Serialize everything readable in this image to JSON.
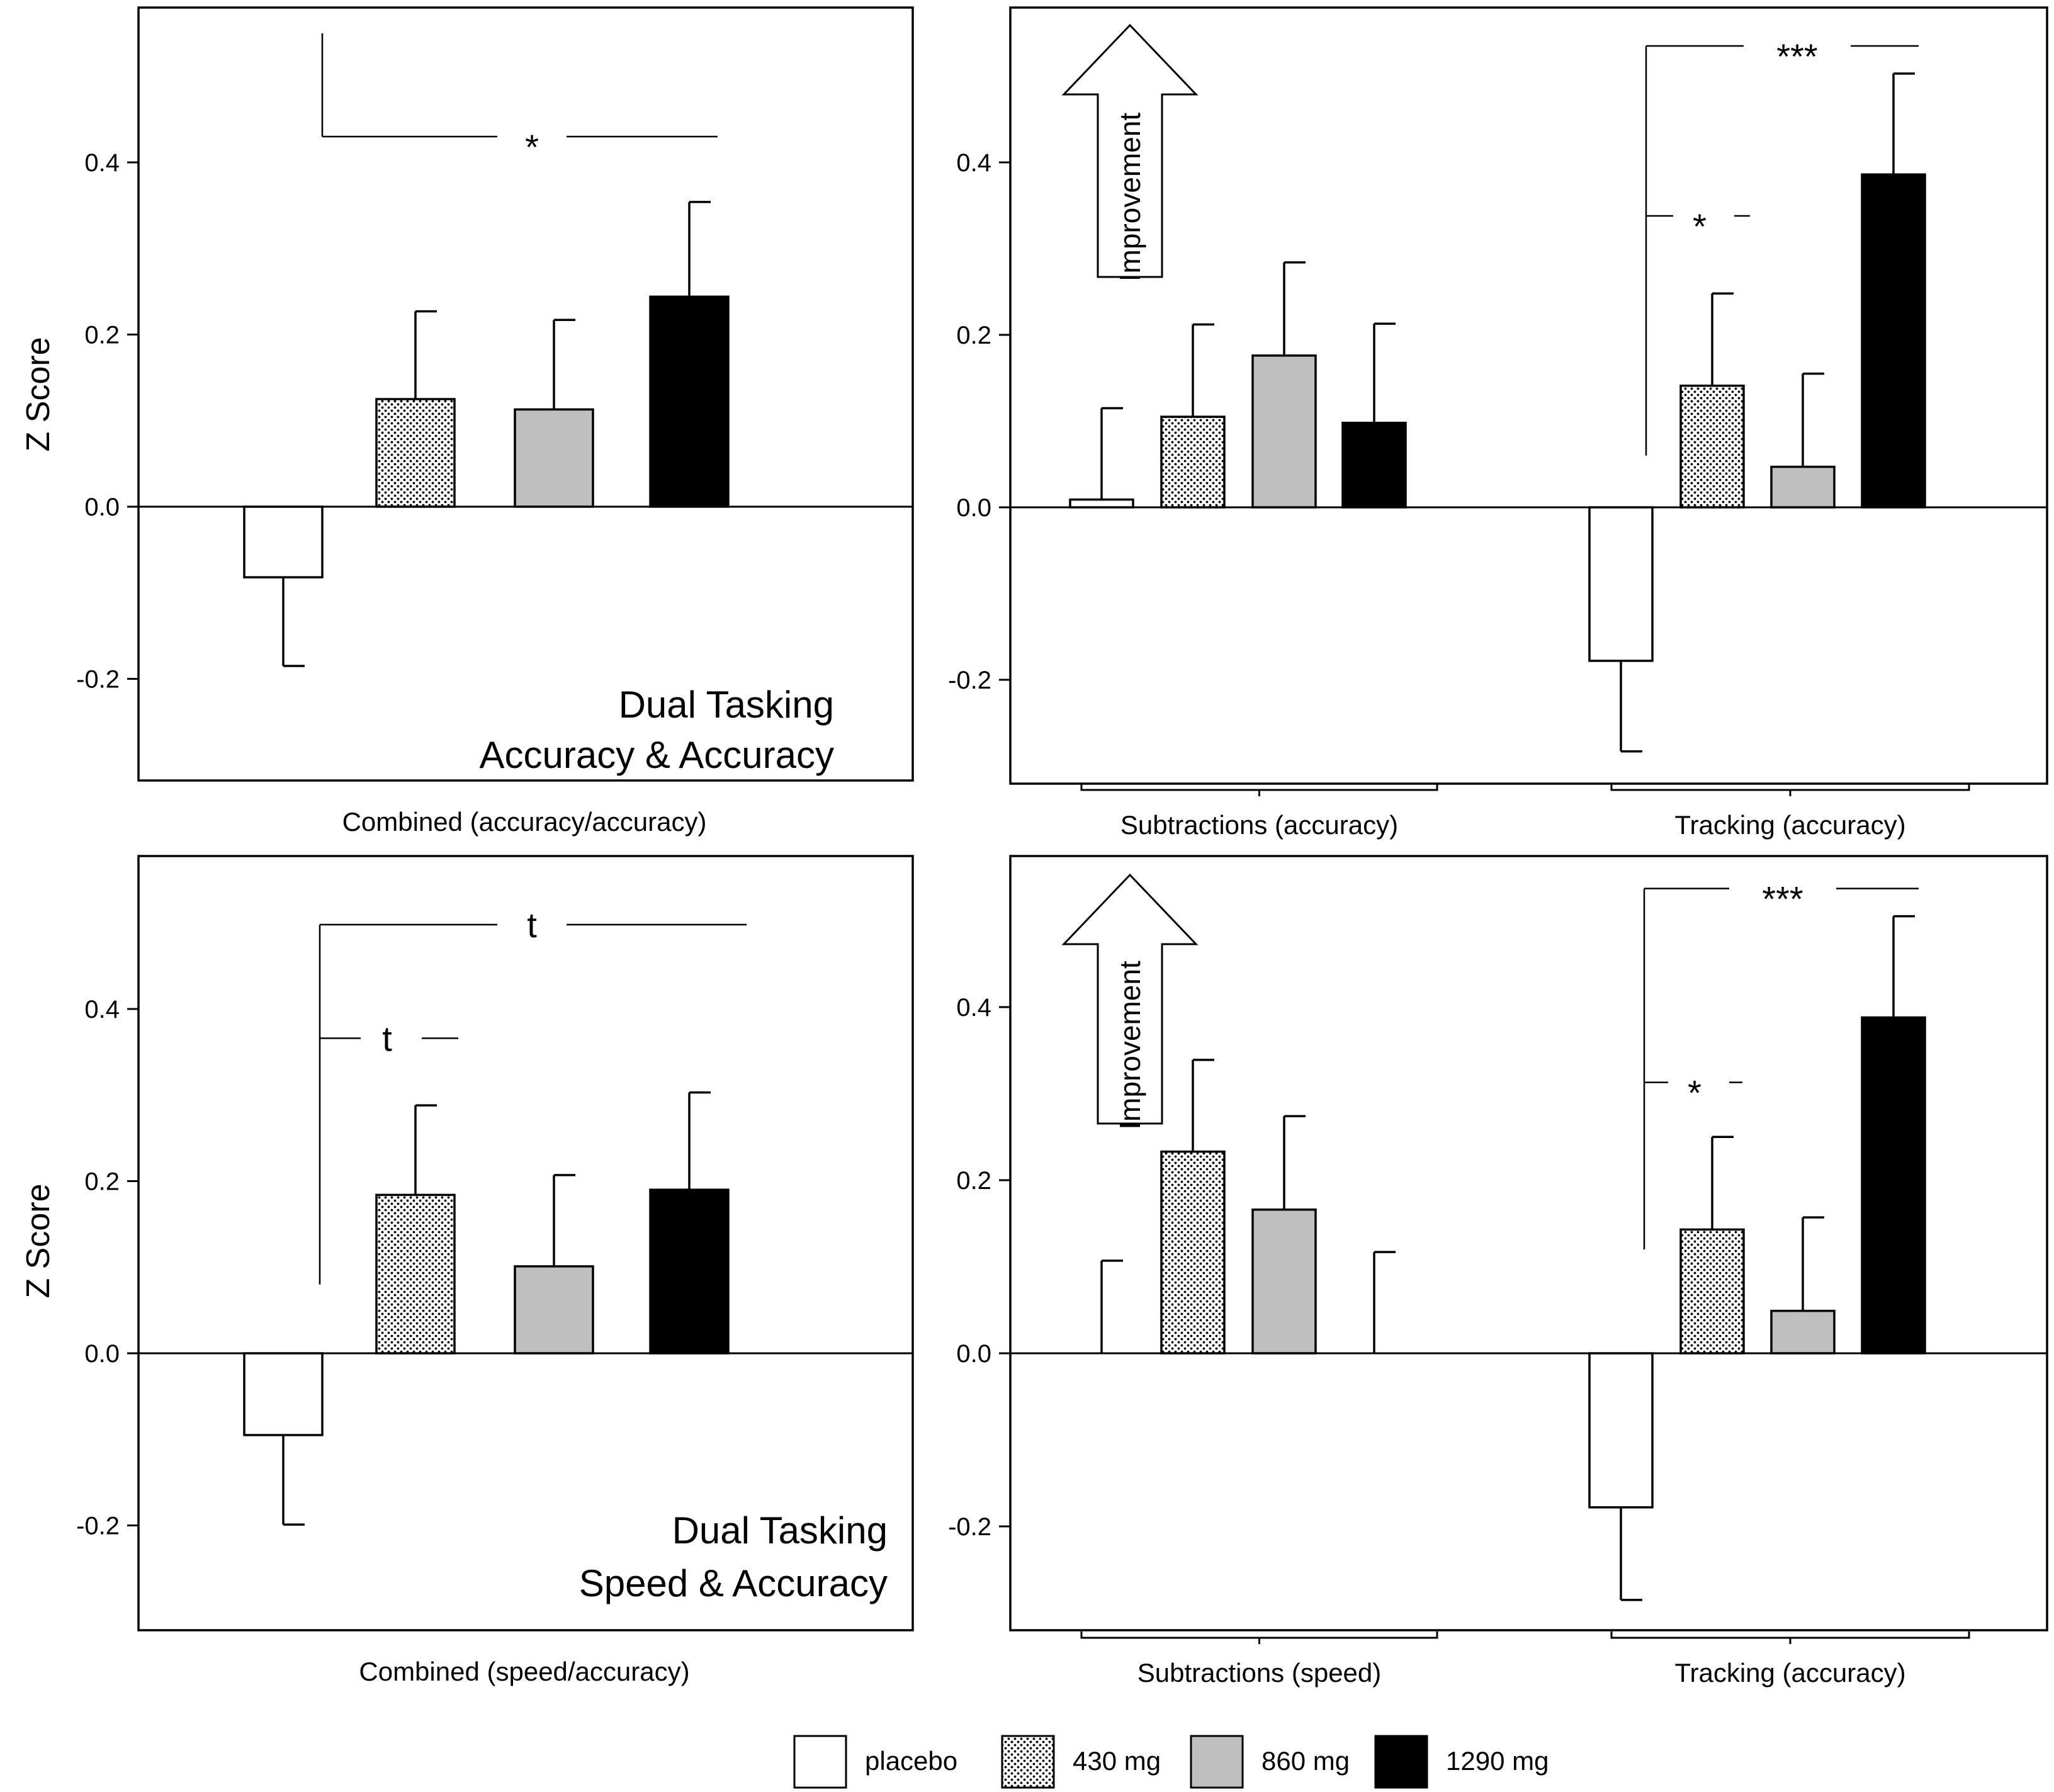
{
  "legend": [
    {
      "label": "placebo",
      "fill": "white"
    },
    {
      "label": "430 mg",
      "fill": "dots"
    },
    {
      "label": "860 mg",
      "fill": "#bfbfbf"
    },
    {
      "label": "1290 mg",
      "fill": "#000000"
    }
  ],
  "colors": {
    "placebo": "#ffffff",
    "mg430": "dots",
    "mg860": "#bfbfbf",
    "mg1290": "#000000",
    "axis": "#000000"
  },
  "chart_data": [
    {
      "type": "bar",
      "panel": "top-left",
      "ylabel": "Z Score",
      "ylim": [
        -0.32,
        0.58
      ],
      "yticks": [
        {
          "v": -0.2,
          "label": "-0.2"
        },
        {
          "v": 0.0,
          "label": "0.0"
        },
        {
          "v": 0.2,
          "label": "0.2"
        },
        {
          "v": 0.4,
          "label": "0.4"
        }
      ],
      "corner_text": [
        "Dual Tasking",
        "Accuracy & Accuracy"
      ],
      "groups": [
        {
          "label": "Combined (accuracy/accuracy)",
          "bracket": false,
          "series": [
            {
              "name": "placebo",
              "value": -0.082,
              "error": 0.103
            },
            {
              "name": "430 mg",
              "value": 0.125,
              "error": 0.102
            },
            {
              "name": "860 mg",
              "value": 0.113,
              "error": 0.104
            },
            {
              "name": "1290 mg",
              "value": 0.244,
              "error": 0.11
            }
          ]
        }
      ],
      "significance": [
        {
          "label": "*",
          "from": "placebo",
          "to": "1290 mg",
          "level": 0.43,
          "stub_end": 0.55,
          "group": 0
        }
      ]
    },
    {
      "type": "bar",
      "panel": "top-right",
      "ylim": [
        -0.32,
        0.58
      ],
      "yticks": [
        {
          "v": -0.2,
          "label": "-0.2"
        },
        {
          "v": 0.0,
          "label": "0.0"
        },
        {
          "v": 0.2,
          "label": "0.2"
        },
        {
          "v": 0.4,
          "label": "0.4"
        }
      ],
      "arrow_label": "Improvement",
      "groups": [
        {
          "label": "Subtractions (accuracy)",
          "bracket": true,
          "series": [
            {
              "name": "placebo",
              "value": 0.009,
              "error": 0.106
            },
            {
              "name": "430 mg",
              "value": 0.105,
              "error": 0.107
            },
            {
              "name": "860 mg",
              "value": 0.176,
              "error": 0.108
            },
            {
              "name": "1290 mg",
              "value": 0.098,
              "error": 0.115
            }
          ]
        },
        {
          "label": "Tracking (accuracy)",
          "bracket": true,
          "series": [
            {
              "name": "placebo",
              "value": -0.178,
              "error": 0.105
            },
            {
              "name": "430 mg",
              "value": 0.141,
              "error": 0.107
            },
            {
              "name": "860 mg",
              "value": 0.047,
              "error": 0.108
            },
            {
              "name": "1290 mg",
              "value": 0.386,
              "error": 0.117
            }
          ]
        }
      ],
      "significance": [
        {
          "label": "***",
          "from": "placebo",
          "to": "1290 mg",
          "level": 0.535,
          "stub_end": 0.06,
          "group": 1
        },
        {
          "label": "*",
          "from": "placebo",
          "to": "430 mg",
          "level": 0.338,
          "stub_end": null,
          "group": 1
        }
      ]
    },
    {
      "type": "bar",
      "panel": "bottom-left",
      "ylabel": "Z Score",
      "ylim": [
        -0.32,
        0.58
      ],
      "yticks": [
        {
          "v": -0.2,
          "label": "-0.2"
        },
        {
          "v": 0.0,
          "label": "0.0"
        },
        {
          "v": 0.2,
          "label": "0.2"
        },
        {
          "v": 0.4,
          "label": "0.4"
        }
      ],
      "corner_text": [
        "Dual Tasking",
        "Speed & Accuracy"
      ],
      "groups": [
        {
          "label": "Combined (speed/accuracy)",
          "bracket": false,
          "series": [
            {
              "name": "placebo",
              "value": -0.095,
              "error": 0.104
            },
            {
              "name": "430 mg",
              "value": 0.184,
              "error": 0.104
            },
            {
              "name": "860 mg",
              "value": 0.101,
              "error": 0.106
            },
            {
              "name": "1290 mg",
              "value": 0.19,
              "error": 0.113
            }
          ]
        }
      ],
      "significance": [
        {
          "label": "t",
          "from": "placebo",
          "to": "1290 mg",
          "level": 0.498,
          "stub_end": 0.08,
          "group": 0
        },
        {
          "label": "t",
          "from": "placebo",
          "to": "430 mg",
          "level": 0.366,
          "stub_end": null,
          "group": 0
        }
      ]
    },
    {
      "type": "bar",
      "panel": "bottom-right",
      "ylim": [
        -0.32,
        0.58
      ],
      "yticks": [
        {
          "v": -0.2,
          "label": "-0.2"
        },
        {
          "v": 0.0,
          "label": "0.0"
        },
        {
          "v": 0.2,
          "label": "0.2"
        },
        {
          "v": 0.4,
          "label": "0.4"
        }
      ],
      "arrow_label": "Improvement",
      "groups": [
        {
          "label": "Subtractions (speed)",
          "bracket": true,
          "series": [
            {
              "name": "placebo",
              "value": 0.0,
              "error": 0.107
            },
            {
              "name": "430 mg",
              "value": 0.233,
              "error": 0.106
            },
            {
              "name": "860 mg",
              "value": 0.166,
              "error": 0.108
            },
            {
              "name": "1290 mg",
              "value": 0.0,
              "error": 0.117
            }
          ]
        },
        {
          "label": "Tracking (accuracy)",
          "bracket": true,
          "series": [
            {
              "name": "placebo",
              "value": -0.178,
              "error": 0.107
            },
            {
              "name": "430 mg",
              "value": 0.143,
              "error": 0.107
            },
            {
              "name": "860 mg",
              "value": 0.049,
              "error": 0.108
            },
            {
              "name": "1290 mg",
              "value": 0.388,
              "error": 0.117
            }
          ]
        }
      ],
      "significance": [
        {
          "label": "***",
          "from": "placebo",
          "to": "1290 mg",
          "level": 0.537,
          "stub_end": 0.12,
          "group": 1
        },
        {
          "label": "*",
          "from": "placebo",
          "to": "430 mg",
          "level": 0.313,
          "stub_end": null,
          "group": 1
        }
      ]
    }
  ]
}
